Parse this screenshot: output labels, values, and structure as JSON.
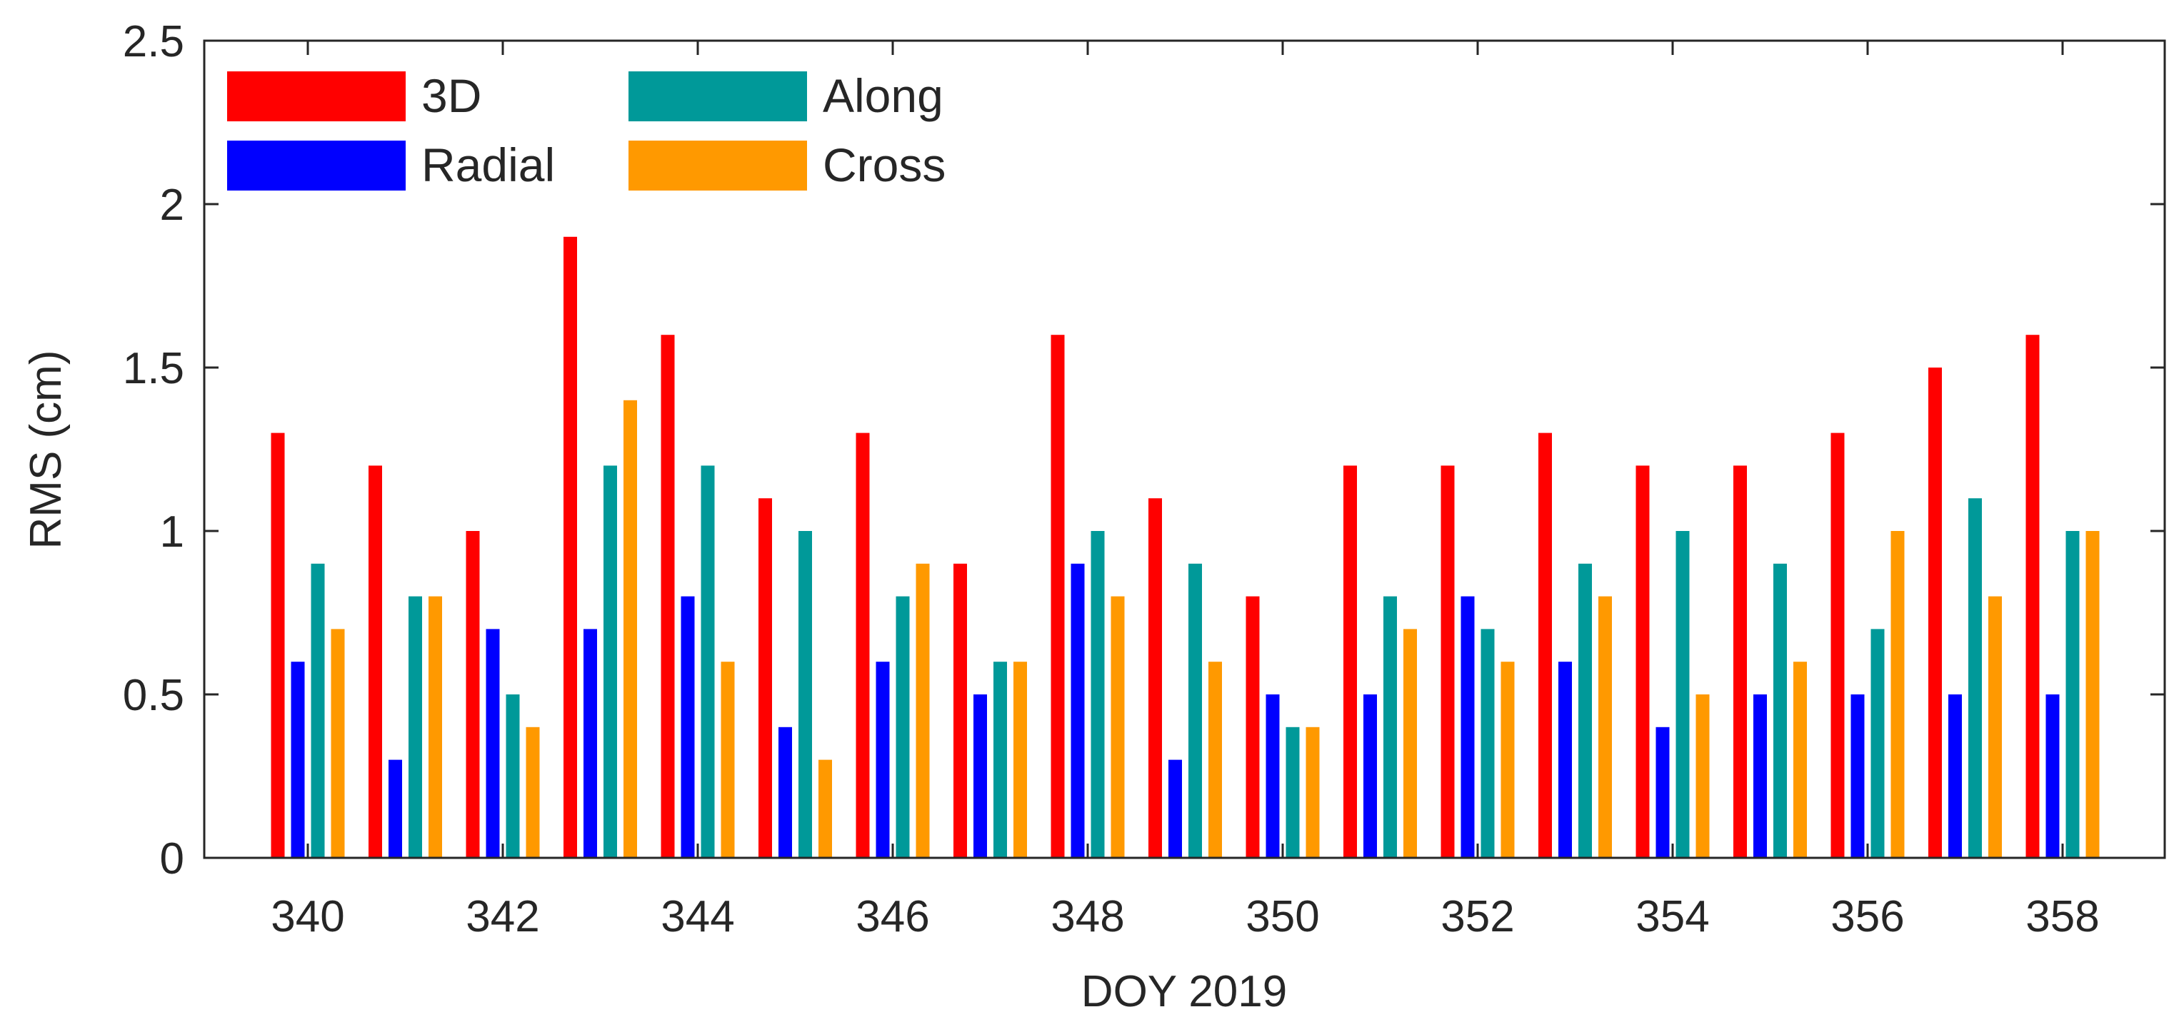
{
  "chart_data": {
    "type": "bar",
    "title": "",
    "xlabel": "DOY 2019",
    "ylabel": "RMS (cm)",
    "ylim": [
      0,
      2.5
    ],
    "y_ticks": [
      0,
      0.5,
      1,
      1.5,
      2,
      2.5
    ],
    "y_tick_labels": [
      "0",
      "0.5",
      "1",
      "1.5",
      "2",
      "2.5"
    ],
    "x_tick_labels": [
      "340",
      "342",
      "344",
      "346",
      "348",
      "350",
      "352",
      "354",
      "356",
      "358"
    ],
    "categories": [
      "340",
      "341",
      "342",
      "343",
      "344",
      "345",
      "346",
      "347",
      "348",
      "349",
      "350",
      "351",
      "352",
      "353",
      "354",
      "355",
      "356",
      "357",
      "358"
    ],
    "grid": false,
    "legend_position": "top-left",
    "series": [
      {
        "name": "3D",
        "color": "#ff0000",
        "values": [
          1.3,
          1.2,
          1.0,
          1.9,
          1.6,
          1.1,
          1.3,
          0.9,
          1.6,
          1.1,
          0.8,
          1.2,
          1.2,
          1.3,
          1.2,
          1.2,
          1.3,
          1.5,
          1.6
        ]
      },
      {
        "name": "Radial",
        "color": "#0000ff",
        "values": [
          0.6,
          0.3,
          0.7,
          0.7,
          0.8,
          0.4,
          0.6,
          0.5,
          0.9,
          0.3,
          0.5,
          0.5,
          0.8,
          0.6,
          0.4,
          0.5,
          0.5,
          0.5,
          0.5
        ]
      },
      {
        "name": "Along",
        "color": "#009999",
        "values": [
          0.9,
          0.8,
          0.5,
          1.2,
          1.2,
          1.0,
          0.8,
          0.6,
          1.0,
          0.9,
          0.4,
          0.8,
          0.7,
          0.9,
          1.0,
          0.9,
          0.7,
          1.1,
          1.0
        ]
      },
      {
        "name": "Cross",
        "color": "#ff9900",
        "values": [
          0.7,
          0.8,
          0.4,
          1.4,
          0.6,
          0.3,
          0.9,
          0.6,
          0.8,
          0.6,
          0.4,
          0.7,
          0.6,
          0.8,
          0.5,
          0.6,
          1.0,
          0.8,
          1.0
        ]
      }
    ]
  }
}
